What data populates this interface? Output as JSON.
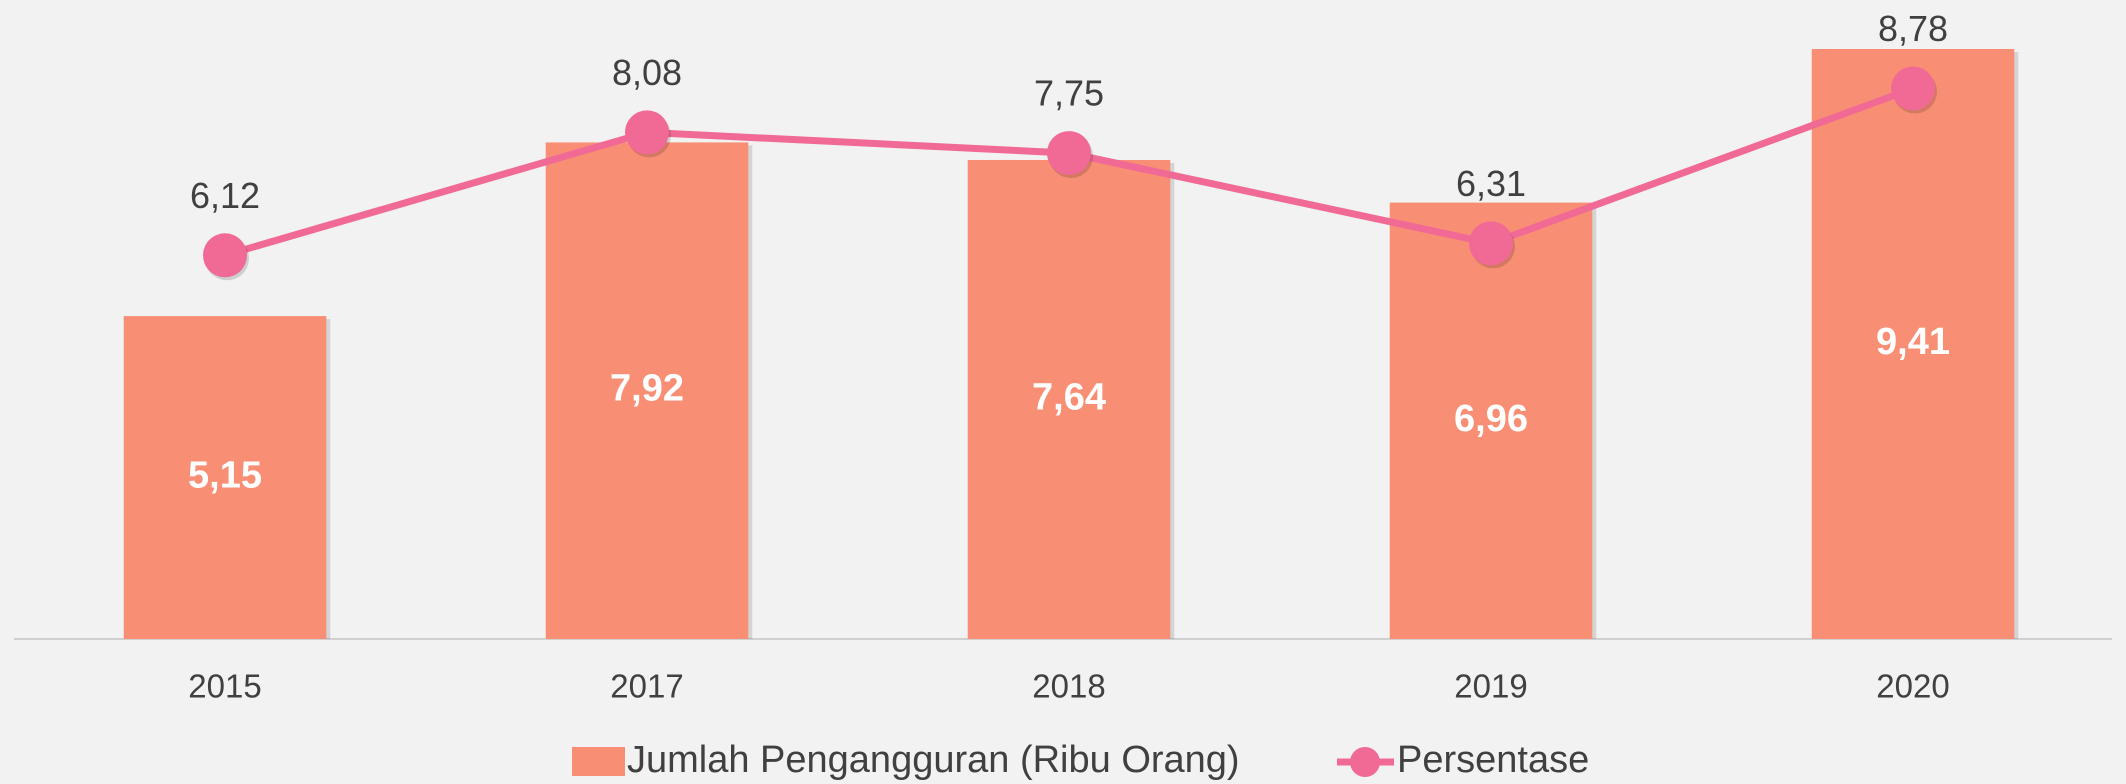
{
  "chart_data": {
    "type": "bar",
    "categories": [
      "2015",
      "2017",
      "2018",
      "2019",
      "2020"
    ],
    "series": [
      {
        "name": "Jumlah Pengangguran (Ribu Orang)",
        "type": "bar",
        "color": "#f88f74",
        "values": [
          5.15,
          7.92,
          7.64,
          6.96,
          9.41
        ],
        "value_labels": [
          "5,15",
          "7,92",
          "7,64",
          "6,96",
          "9,41"
        ]
      },
      {
        "name": "Persentase",
        "type": "line",
        "axis": "y2",
        "color": "#f06a95",
        "values": [
          6.12,
          8.08,
          7.75,
          6.31,
          8.78
        ],
        "value_labels": [
          "6,12",
          "8,08",
          "7,75",
          "6,31",
          "8,78"
        ]
      }
    ],
    "ylim": [
      0,
      10
    ],
    "y2lim": [
      0,
      10
    ],
    "legend": "bottom"
  }
}
